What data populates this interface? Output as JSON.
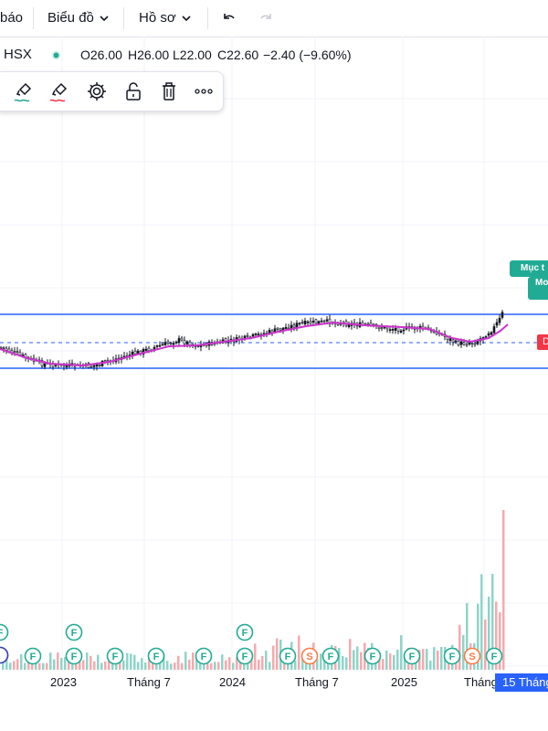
{
  "topbar": {
    "item1": "báo",
    "item2": "Biểu đồ",
    "item3": "Hồ sơ"
  },
  "legend": {
    "exchange": "HSX",
    "open": "O26.00",
    "high": "H26.00",
    "low": "L22.00",
    "close": "C22.60",
    "change": "−2.40 (−9.60%)"
  },
  "price_label_right": {
    "line1": "Mục t",
    "line2": "Mo"
  },
  "price_marker_right": "D",
  "xaxis": {
    "labels": [
      "2023",
      "Tháng 7",
      "2024",
      "Tháng 7",
      "2025",
      "Tháng"
    ],
    "crosshair_label": "15 Tháng"
  },
  "events": {
    "letters": [
      "F",
      "S"
    ]
  },
  "colors": {
    "up": "#22ab94",
    "down": "#f23645",
    "ma": "#cc33cc",
    "channel": "#2962ff",
    "accent": "#2962ff"
  },
  "chart_data": {
    "type": "candlestick",
    "ma_line": "MA",
    "xlabels": [
      "2023",
      "Tháng 7",
      "2024",
      "Tháng 7",
      "2025",
      "Tháng"
    ]
  }
}
